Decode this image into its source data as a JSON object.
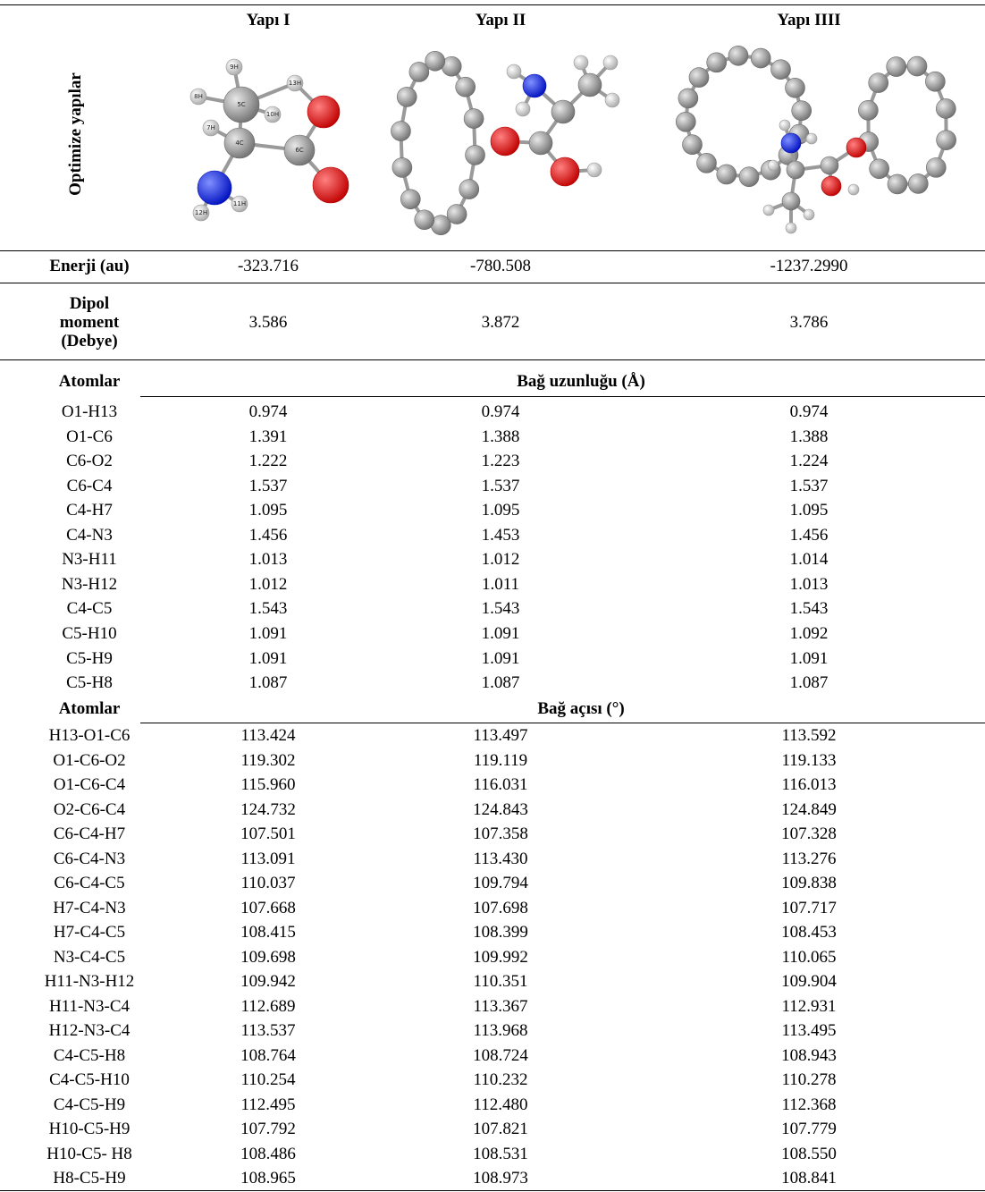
{
  "header": {
    "row_label": "Optimize yapılar",
    "columns": [
      "Yapı I",
      "Yapı II",
      "Yapı IIII"
    ]
  },
  "structure_1_atom_labels": [
    "9H",
    "13H",
    "8H",
    "5C",
    "10H",
    "7H",
    "4C",
    "6C",
    "12H",
    "11H"
  ],
  "energy": {
    "label": "Enerji (au)",
    "values": [
      "-323.716",
      "-780.508",
      "-1237.2990"
    ]
  },
  "dipole": {
    "label_lines": [
      "Dipol",
      "moment",
      "(Debye)"
    ],
    "values": [
      "3.586",
      "3.872",
      "3.786"
    ]
  },
  "bond_lengths": {
    "label": "Atomlar",
    "title": "Bağ uzunluğu (Å)",
    "rows": [
      [
        "O1-H13",
        "0.974",
        "0.974",
        "0.974"
      ],
      [
        "O1-C6",
        "1.391",
        "1.388",
        "1.388"
      ],
      [
        "C6-O2",
        "1.222",
        "1.223",
        "1.224"
      ],
      [
        "C6-C4",
        "1.537",
        "1.537",
        "1.537"
      ],
      [
        "C4-H7",
        "1.095",
        "1.095",
        "1.095"
      ],
      [
        "C4-N3",
        "1.456",
        "1.453",
        "1.456"
      ],
      [
        "N3-H11",
        "1.013",
        "1.012",
        "1.014"
      ],
      [
        "N3-H12",
        "1.012",
        "1.011",
        "1.013"
      ],
      [
        "C4-C5",
        "1.543",
        "1.543",
        "1.543"
      ],
      [
        "C5-H10",
        "1.091",
        "1.091",
        "1.092"
      ],
      [
        "C5-H9",
        "1.091",
        "1.091",
        "1.091"
      ],
      [
        "C5-H8",
        "1.087",
        "1.087",
        "1.087"
      ]
    ]
  },
  "bond_angles": {
    "label": "Atomlar",
    "title": "Bağ açısı (°)",
    "rows": [
      [
        "H13-O1-C6",
        "113.424",
        "113.497",
        "113.592"
      ],
      [
        "O1-C6-O2",
        "119.302",
        "119.119",
        "119.133"
      ],
      [
        "O1-C6-C4",
        "115.960",
        "116.031",
        "116.013"
      ],
      [
        "O2-C6-C4",
        "124.732",
        "124.843",
        "124.849"
      ],
      [
        "C6-C4-H7",
        "107.501",
        "107.358",
        "107.328"
      ],
      [
        "C6-C4-N3",
        "113.091",
        "113.430",
        "113.276"
      ],
      [
        "C6-C4-C5",
        "110.037",
        "109.794",
        "109.838"
      ],
      [
        "H7-C4-N3",
        "107.668",
        "107.698",
        "107.717"
      ],
      [
        "H7-C4-C5",
        "108.415",
        "108.399",
        "108.453"
      ],
      [
        "N3-C4-C5",
        "109.698",
        "109.992",
        "110.065"
      ],
      [
        "H11-N3-H12",
        "109.942",
        "110.351",
        "109.904"
      ],
      [
        "H11-N3-C4",
        "112.689",
        "113.367",
        "112.931"
      ],
      [
        "H12-N3-C4",
        "113.537",
        "113.968",
        "113.495"
      ],
      [
        "C4-C5-H8",
        "108.764",
        "108.724",
        "108.943"
      ],
      [
        "C4-C5-H10",
        "110.254",
        "110.232",
        "110.278"
      ],
      [
        "C4-C5-H9",
        "112.495",
        "112.480",
        "112.368"
      ],
      [
        "H10-C5-H9",
        "107.792",
        "107.821",
        "107.779"
      ],
      [
        "H10-C5- H8",
        "108.486",
        "108.531",
        "108.550"
      ],
      [
        "H8-C5-H9",
        "108.965",
        "108.973",
        "108.841"
      ]
    ]
  }
}
